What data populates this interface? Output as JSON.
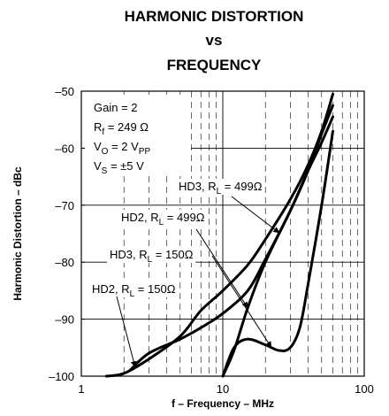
{
  "chart_data": {
    "type": "line",
    "title": [
      "HARMONIC DISTORTION",
      "vs",
      "FREQUENCY"
    ],
    "xlabel": "f – Frequency – MHz",
    "ylabel": "Harmonic Distortion – dBc",
    "x_scale": "log",
    "xlim": [
      1,
      100
    ],
    "ylim": [
      -100,
      -50
    ],
    "x_ticks": [
      1,
      10,
      100
    ],
    "x_tick_labels": [
      "1",
      "10",
      "100"
    ],
    "y_ticks": [
      -100,
      -90,
      -80,
      -70,
      -60,
      -50
    ],
    "y_tick_labels": [
      "–100",
      "–90",
      "–80",
      "–70",
      "–60",
      "–50"
    ],
    "grid": true,
    "conditions": [
      {
        "main": "Gain = 2",
        "sub": "",
        "tail": ""
      },
      {
        "main": "R",
        "sub": "f",
        "tail": " = 249 Ω"
      },
      {
        "main": "V",
        "sub": "O",
        "tail": " = 2 V",
        "sub2": "PP"
      },
      {
        "main": "V",
        "sub": "S",
        "tail": " = ±5 V"
      }
    ],
    "series": [
      {
        "label": {
          "main": "HD3, R",
          "sub": "L",
          "tail": " = 499Ω"
        },
        "x": [
          2.2,
          3,
          5,
          7,
          10,
          15,
          20,
          30,
          40,
          50,
          60
        ],
        "y": [
          -99,
          -96,
          -93.5,
          -91.5,
          -89,
          -85,
          -79.5,
          -71,
          -64,
          -57.5,
          -52.5
        ]
      },
      {
        "label": {
          "main": "HD2, R",
          "sub": "L",
          "tail": " = 499Ω"
        },
        "x": [
          10,
          12,
          15,
          20,
          30,
          40,
          50,
          60
        ],
        "y": [
          -100,
          -95.5,
          -88,
          -80,
          -71,
          -64,
          -59,
          -54.5
        ]
      },
      {
        "label": {
          "main": "HD3, R",
          "sub": "L",
          "tail": " = 150Ω"
        },
        "x": [
          10,
          12,
          15,
          20,
          25,
          30,
          35,
          40,
          50,
          60
        ],
        "y": [
          -100,
          -95,
          -93.5,
          -94.5,
          -95.5,
          -95,
          -91.5,
          -84,
          -70,
          -57
        ]
      },
      {
        "label": {
          "main": "HD2, R",
          "sub": "L",
          "tail": " = 150Ω"
        },
        "x": [
          1.5,
          2,
          3,
          5,
          7,
          10,
          15,
          20,
          30,
          40,
          50,
          60
        ],
        "y": [
          -100,
          -99.5,
          -97,
          -93,
          -88.5,
          -85,
          -80.5,
          -76,
          -69,
          -63,
          -57,
          -50.5
        ]
      }
    ]
  }
}
